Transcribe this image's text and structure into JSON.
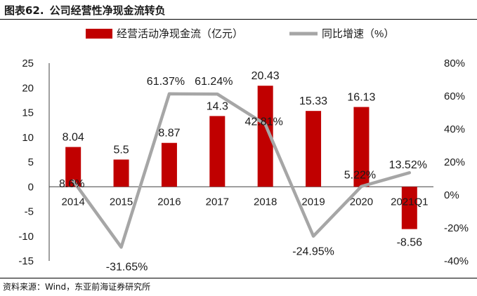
{
  "figure": {
    "number": "图表62.",
    "title": "公司经营性净现金流转负",
    "source": "资料来源：Wind，东亚前海证券研究所"
  },
  "colors": {
    "bar": "#c00000",
    "line": "#a6a6a6",
    "text": "#1a1a1a",
    "axis": "#404040"
  },
  "chart_data": {
    "type": "bar",
    "categories": [
      "2014",
      "2015",
      "2016",
      "2017",
      "2018",
      "2019",
      "2020",
      "2021Q1"
    ],
    "series": [
      {
        "name": "经营活动净现金流（亿元）",
        "type": "bar",
        "axis": "left",
        "values": [
          8.04,
          5.5,
          8.87,
          14.3,
          20.43,
          15.33,
          16.13,
          -8.56
        ],
        "labels": [
          "8.04",
          "5.5",
          "8.87",
          "14.3",
          "20.43",
          "15.33",
          "16.13",
          "-8.56"
        ]
      },
      {
        "name": "同比增速（%）",
        "type": "line",
        "axis": "right",
        "values": [
          8.6,
          -31.65,
          61.37,
          61.24,
          42.81,
          -24.95,
          5.22,
          13.52
        ],
        "labels": [
          "8.6%",
          "-31.65%",
          "61.37%",
          "61.24%",
          "42.81%",
          "-24.95%",
          "5.22%",
          "13.52%"
        ]
      }
    ],
    "y_left": {
      "range": [
        -15,
        25
      ],
      "ticks": [
        "-15",
        "-10",
        "-5",
        "0",
        "5",
        "10",
        "15",
        "20",
        "25"
      ]
    },
    "y_right": {
      "range": [
        -40,
        80
      ],
      "ticks": [
        "-40%",
        "-20%",
        "0%",
        "20%",
        "40%",
        "60%",
        "80%"
      ]
    },
    "legend": "top-center",
    "grid": false
  }
}
